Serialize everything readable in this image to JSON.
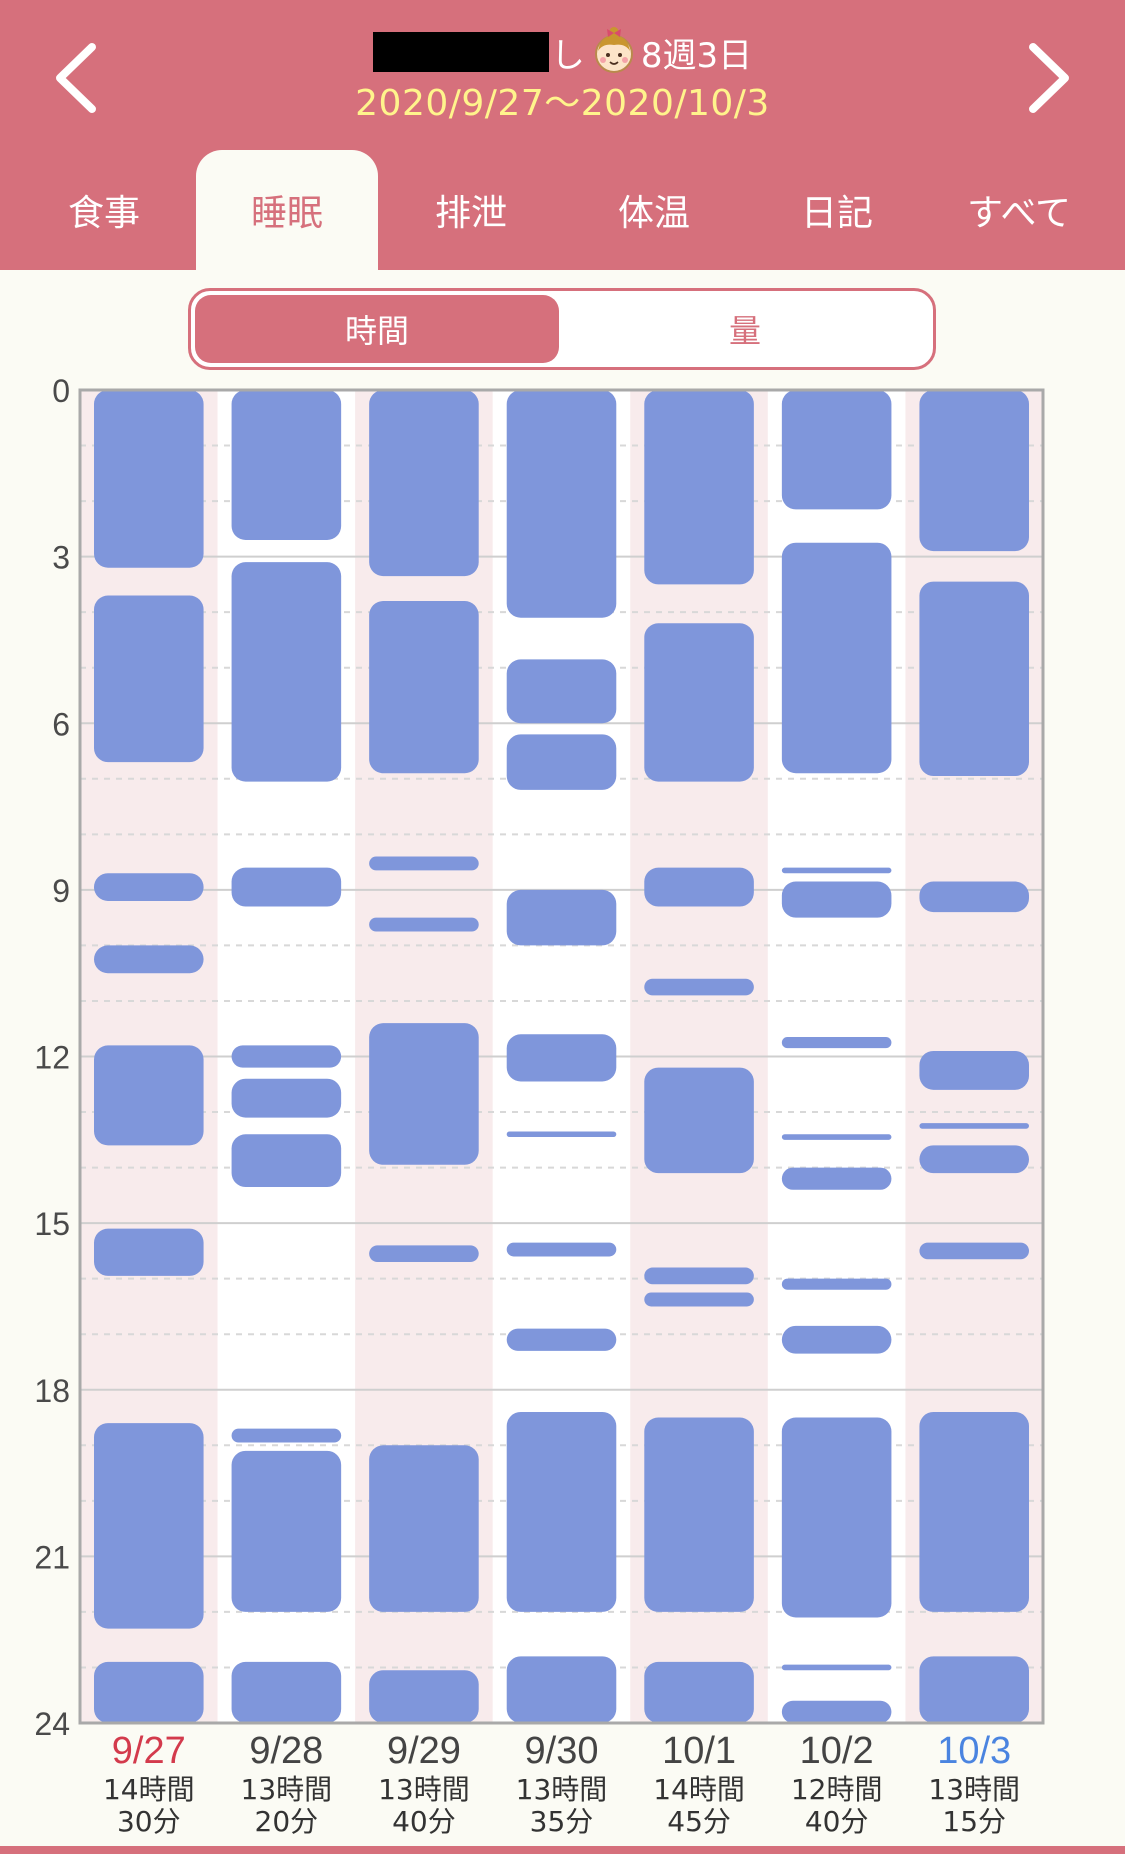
{
  "header": {
    "name_tail": "し",
    "age": "8週3日",
    "date_range": "2020/9/27〜2020/10/3",
    "baby_icon": "baby-face-icon",
    "prev_icon": "chevron-left-icon",
    "next_icon": "chevron-right-icon"
  },
  "tabs": [
    {
      "label": "食事"
    },
    {
      "label": "睡眠",
      "active": true
    },
    {
      "label": "排泄"
    },
    {
      "label": "体温"
    },
    {
      "label": "日記"
    },
    {
      "label": "すべて"
    }
  ],
  "segment": {
    "time_label": "時間",
    "amount_label": "量",
    "selected": "時間"
  },
  "colors": {
    "brand": "#d6707c",
    "sleep_bar": "#7f96db",
    "sunday": "#d33a4c",
    "saturday": "#4a84e0",
    "date_range_text": "#fff48c"
  },
  "chart_data": {
    "type": "bar",
    "orientation": "vertical-timeline",
    "y_unit": "hour",
    "ylim": [
      0,
      24
    ],
    "yticks": [
      "0",
      "3",
      "6",
      "9",
      "12",
      "15",
      "18",
      "21",
      "24"
    ],
    "grid": true,
    "days": [
      {
        "date": "9/27",
        "weekday": "sun",
        "total_line1": "14時間",
        "total_line2": "30分",
        "sleeps": [
          [
            0,
            3.2
          ],
          [
            3.7,
            6.7
          ],
          [
            8.7,
            9.2
          ],
          [
            10.0,
            10.5
          ],
          [
            11.8,
            13.6
          ],
          [
            15.1,
            15.95
          ],
          [
            18.6,
            22.3
          ],
          [
            22.9,
            24
          ]
        ]
      },
      {
        "date": "9/28",
        "weekday": "mon",
        "total_line1": "13時間",
        "total_line2": "20分",
        "sleeps": [
          [
            0,
            2.7
          ],
          [
            3.1,
            7.05
          ],
          [
            8.6,
            9.3
          ],
          [
            11.8,
            12.2
          ],
          [
            12.4,
            13.1
          ],
          [
            13.4,
            14.35
          ],
          [
            18.7,
            18.95
          ],
          [
            19.1,
            22.0
          ],
          [
            22.9,
            24
          ]
        ]
      },
      {
        "date": "9/29",
        "weekday": "tue",
        "total_line1": "13時間",
        "total_line2": "40分",
        "sleeps": [
          [
            0,
            3.35
          ],
          [
            3.8,
            6.9
          ],
          [
            8.4,
            8.65
          ],
          [
            9.5,
            9.75
          ],
          [
            11.4,
            13.95
          ],
          [
            15.4,
            15.7
          ],
          [
            19.0,
            22.0
          ],
          [
            23.05,
            24
          ]
        ]
      },
      {
        "date": "9/30",
        "weekday": "wed",
        "total_line1": "13時間",
        "total_line2": "35分",
        "sleeps": [
          [
            0,
            4.1
          ],
          [
            4.85,
            6.0
          ],
          [
            6.2,
            7.2
          ],
          [
            9.0,
            10.0
          ],
          [
            11.6,
            12.45
          ],
          [
            13.35,
            13.45
          ],
          [
            15.35,
            15.6
          ],
          [
            16.9,
            17.3
          ],
          [
            18.4,
            22.0
          ],
          [
            22.8,
            24
          ]
        ]
      },
      {
        "date": "10/1",
        "weekday": "thu",
        "total_line1": "14時間",
        "total_line2": "45分",
        "sleeps": [
          [
            0,
            3.5
          ],
          [
            4.2,
            7.05
          ],
          [
            8.6,
            9.3
          ],
          [
            10.6,
            10.9
          ],
          [
            12.2,
            14.1
          ],
          [
            15.8,
            16.1
          ],
          [
            16.25,
            16.5
          ],
          [
            18.5,
            22.0
          ],
          [
            22.9,
            24
          ]
        ]
      },
      {
        "date": "10/2",
        "weekday": "fri",
        "total_line1": "12時間",
        "total_line2": "40分",
        "sleeps": [
          [
            0,
            2.15
          ],
          [
            2.75,
            6.9
          ],
          [
            8.6,
            8.7
          ],
          [
            8.85,
            9.5
          ],
          [
            11.65,
            11.85
          ],
          [
            13.4,
            13.5
          ],
          [
            14.0,
            14.4
          ],
          [
            16.0,
            16.2
          ],
          [
            16.85,
            17.35
          ],
          [
            18.5,
            22.1
          ],
          [
            22.95,
            23.05
          ],
          [
            23.6,
            24
          ]
        ]
      },
      {
        "date": "10/3",
        "weekday": "sat",
        "total_line1": "13時間",
        "total_line2": "15分",
        "sleeps": [
          [
            0,
            2.9
          ],
          [
            3.45,
            6.95
          ],
          [
            8.85,
            9.4
          ],
          [
            11.9,
            12.6
          ],
          [
            13.2,
            13.3
          ],
          [
            13.6,
            14.1
          ],
          [
            15.35,
            15.65
          ],
          [
            18.4,
            22.0
          ],
          [
            22.8,
            24
          ]
        ]
      }
    ]
  }
}
